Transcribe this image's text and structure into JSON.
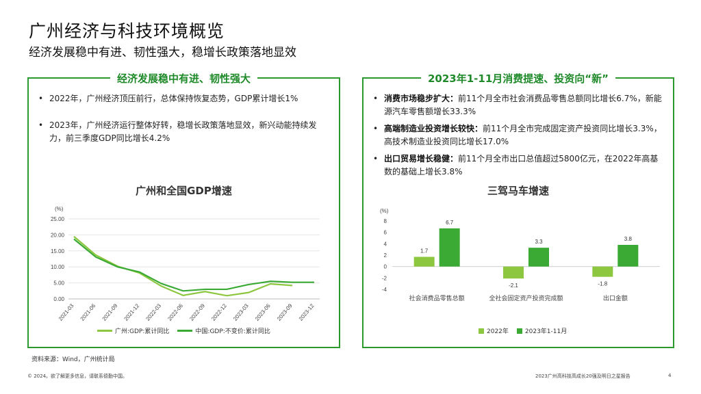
{
  "page": {
    "title": "广州经济与科技环境概览",
    "subtitle": "经济发展稳中有进、韧性强大，稳增长政策落地显效",
    "source": "资料来源：Wind，广州统计局",
    "footer_left": "© 2024。欲了解更多信息，请联系德勤中国。",
    "footer_right": "2023广州高科技高成长20强及明日之星报告",
    "page_number": "4"
  },
  "left_panel": {
    "heading": "经济发展稳中有进、韧性强大",
    "bullets": [
      "2022年，广州经济顶压前行，总体保持恢复态势，GDP累计增长1%",
      "2023年，广州经济运行整体好转，稳增长政策落地显效，新兴动能持续发力，前三季度GDP同比增长4.2%"
    ]
  },
  "right_panel": {
    "heading": "2023年1-11月消费提速、投资向“新”",
    "bullets": [
      {
        "bold": "消费市场稳步扩大：",
        "text": "前11个月全市社会消费品零售总额同比增长6.7%，新能源汽车零售额增长33.3%"
      },
      {
        "bold": "高端制造业投资增长较快：",
        "text": "前11个月全市完成固定资产投资同比增长3.3%，高技术制造业投资同比增长17.0%"
      },
      {
        "bold": "出口贸易增长稳健：",
        "text": "前11个月全市出口总值超过5800亿元，在2022年高基数的基础上增长3.8%"
      }
    ]
  },
  "chart_data": [
    {
      "type": "line",
      "title": "广州和全国GDP增速",
      "ylabel": "(%)",
      "ylim": [
        0,
        25
      ],
      "yticks": [
        "0.00",
        "5.00",
        "10.00",
        "15.00",
        "20.00",
        "25.00"
      ],
      "x": [
        "2021-03",
        "2021-06",
        "2021-09",
        "2021-12",
        "2022-03",
        "2022-06",
        "2022-09",
        "2022-12",
        "2023-03",
        "2023-06",
        "2023-09",
        "2023-12"
      ],
      "series": [
        {
          "name": "广州:GDP:累计同比",
          "color": "#8dc63f",
          "values": [
            19.5,
            13.7,
            10.2,
            8.1,
            4.0,
            1.1,
            2.3,
            1.0,
            2.0,
            4.7,
            4.2,
            null
          ]
        },
        {
          "name": "中国:GDP:不变价:累计同比",
          "color": "#3aaa35",
          "values": [
            18.7,
            13.1,
            10.0,
            8.4,
            4.8,
            2.5,
            3.0,
            3.0,
            4.5,
            5.5,
            5.2,
            5.2
          ]
        }
      ],
      "legend": "bottom"
    },
    {
      "type": "bar",
      "title": "三驾马车增速",
      "ylabel": "(%)",
      "ylim": [
        -4,
        8
      ],
      "yticks": [
        "-4",
        "-2",
        "0",
        "2",
        "4",
        "6",
        "8"
      ],
      "categories": [
        "社会消费品零售总额",
        "全社会固定资产投资完成额",
        "出口金额"
      ],
      "series": [
        {
          "name": "2022年",
          "color": "#8dc63f",
          "values": [
            1.7,
            -2.1,
            -1.8
          ]
        },
        {
          "name": "2023年1-11月",
          "color": "#3aaa35",
          "values": [
            6.7,
            3.3,
            3.8
          ]
        }
      ],
      "legend": "bottom"
    }
  ]
}
